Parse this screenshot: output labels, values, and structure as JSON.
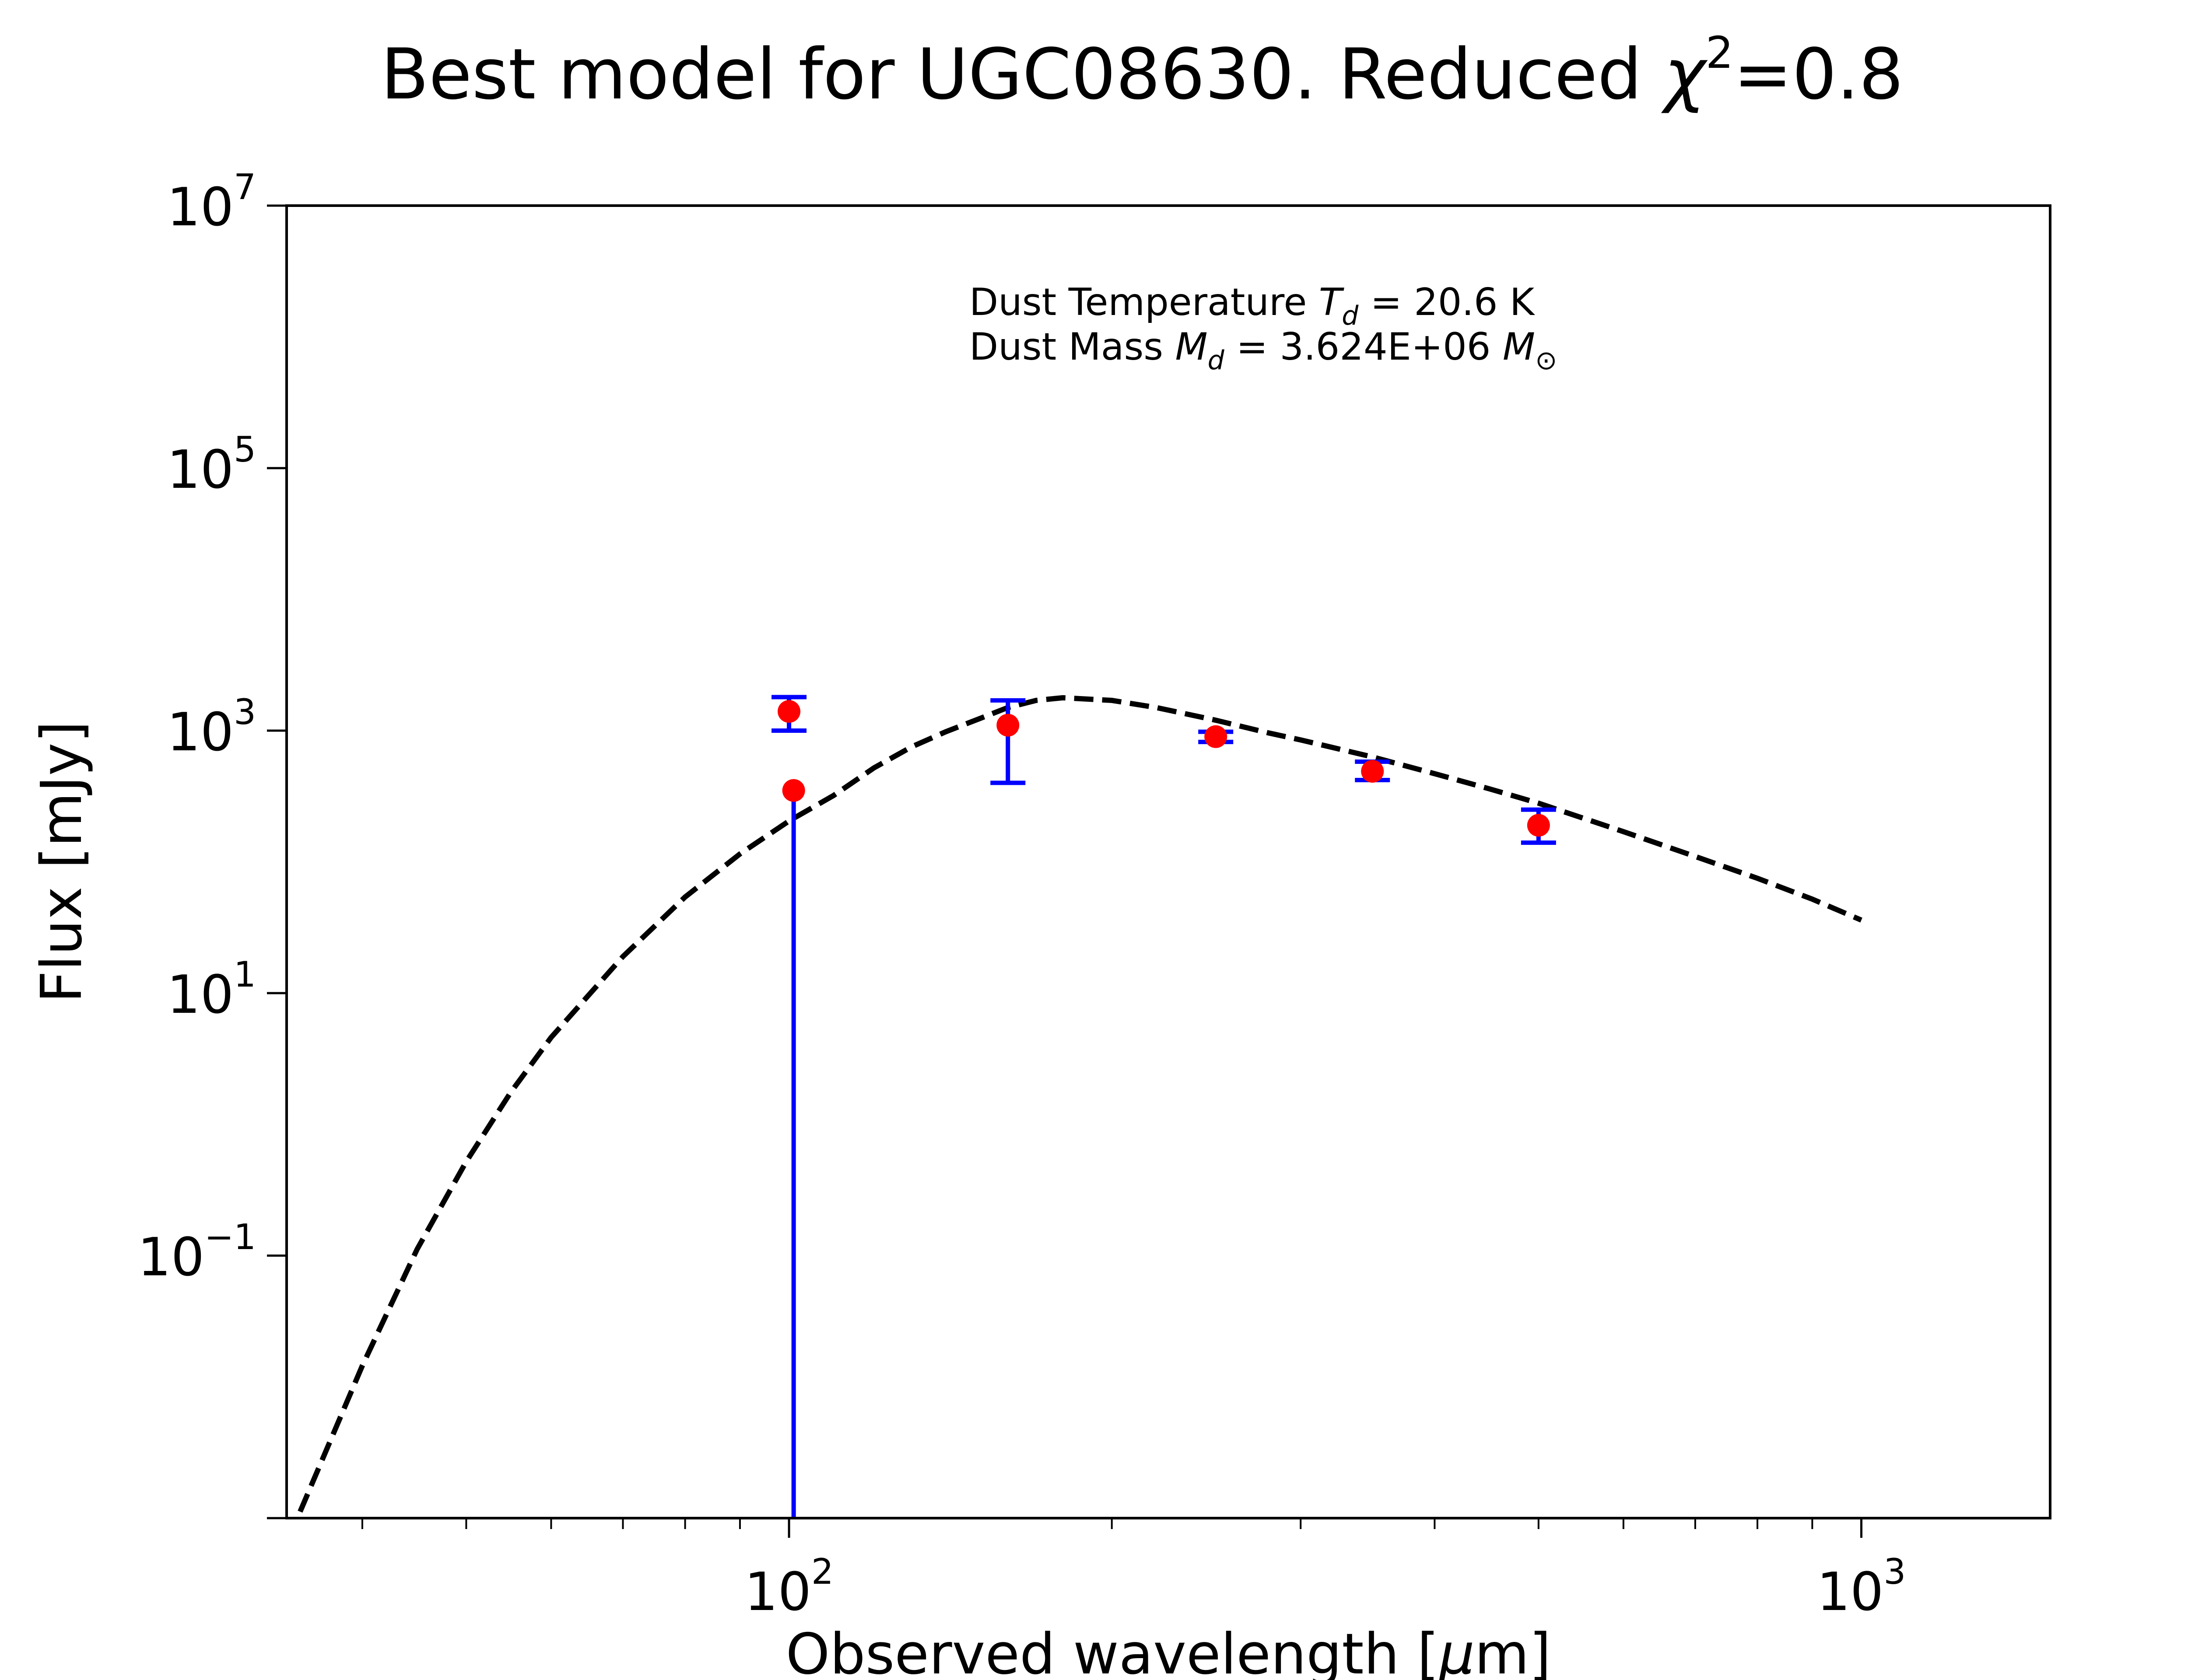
{
  "chart_data": {
    "type": "scatter",
    "title": {
      "main": "Best model for UGC08630. Reduced ",
      "chi": "χ",
      "sup": "2",
      "tail": "=0.8"
    },
    "xlabel": {
      "main": "Observed wavelength [",
      "mu": "μ",
      "tail": "m]"
    },
    "ylabel": "Flux [mJy]",
    "x_scale": "log",
    "y_scale": "log",
    "xlim": [
      34,
      1500
    ],
    "ylim": [
      0.001,
      10000000
    ],
    "x_ticks": [
      {
        "value": 100,
        "base": "10",
        "exp": "2"
      },
      {
        "value": 1000,
        "base": "10",
        "exp": "3"
      }
    ],
    "y_ticks": [
      {
        "value": 0.1,
        "base": "10",
        "exp": "−1"
      },
      {
        "value": 10,
        "base": "10",
        "exp": "1"
      },
      {
        "value": 1000,
        "base": "10",
        "exp": "3"
      },
      {
        "value": 100000,
        "base": "10",
        "exp": "5"
      },
      {
        "value": 10000000,
        "base": "10",
        "exp": "7"
      }
    ],
    "annotation": {
      "line1": {
        "prefix": "Dust Temperature ",
        "sym": "T",
        "sub": "d",
        "suffix": " = 20.6 K"
      },
      "line2": {
        "prefix": "Dust Mass ",
        "sym": "M",
        "sub": "d",
        "mid": " = 3.624E+06 ",
        "unit": "M",
        "unit_sub": "⊙"
      }
    },
    "model": {
      "style": "dashed",
      "color": "#000000",
      "x": [
        35,
        40,
        45,
        50,
        55,
        60,
        70,
        80,
        90,
        100,
        110,
        120,
        130,
        140,
        150,
        160,
        170,
        180,
        200,
        220,
        250,
        280,
        300,
        350,
        400,
        450,
        500,
        600,
        700,
        800,
        900,
        1000
      ],
      "y": [
        0.00112,
        0.0145,
        0.112,
        0.52,
        1.75,
        4.6,
        19,
        54,
        115,
        205,
        320,
        520,
        750,
        980,
        1220,
        1500,
        1700,
        1780,
        1700,
        1500,
        1200,
        960,
        850,
        630,
        470,
        360,
        280,
        170,
        110,
        75,
        52,
        36
      ]
    },
    "points": {
      "marker_color": "#ff0000",
      "errorbar_color": "#0000ff",
      "data": [
        {
          "x": 100,
          "y": 1400,
          "ylow": 1000,
          "yhigh": 1800
        },
        {
          "x": 101,
          "y": 350,
          "ylow": 0.001,
          "yhigh": null
        },
        {
          "x": 160,
          "y": 1100,
          "ylow": 400,
          "yhigh": 1700
        },
        {
          "x": 250,
          "y": 900,
          "ylow": 820,
          "yhigh": 980
        },
        {
          "x": 350,
          "y": 490,
          "ylow": 420,
          "yhigh": 580
        },
        {
          "x": 500,
          "y": 190,
          "ylow": 140,
          "yhigh": 250
        }
      ]
    }
  }
}
